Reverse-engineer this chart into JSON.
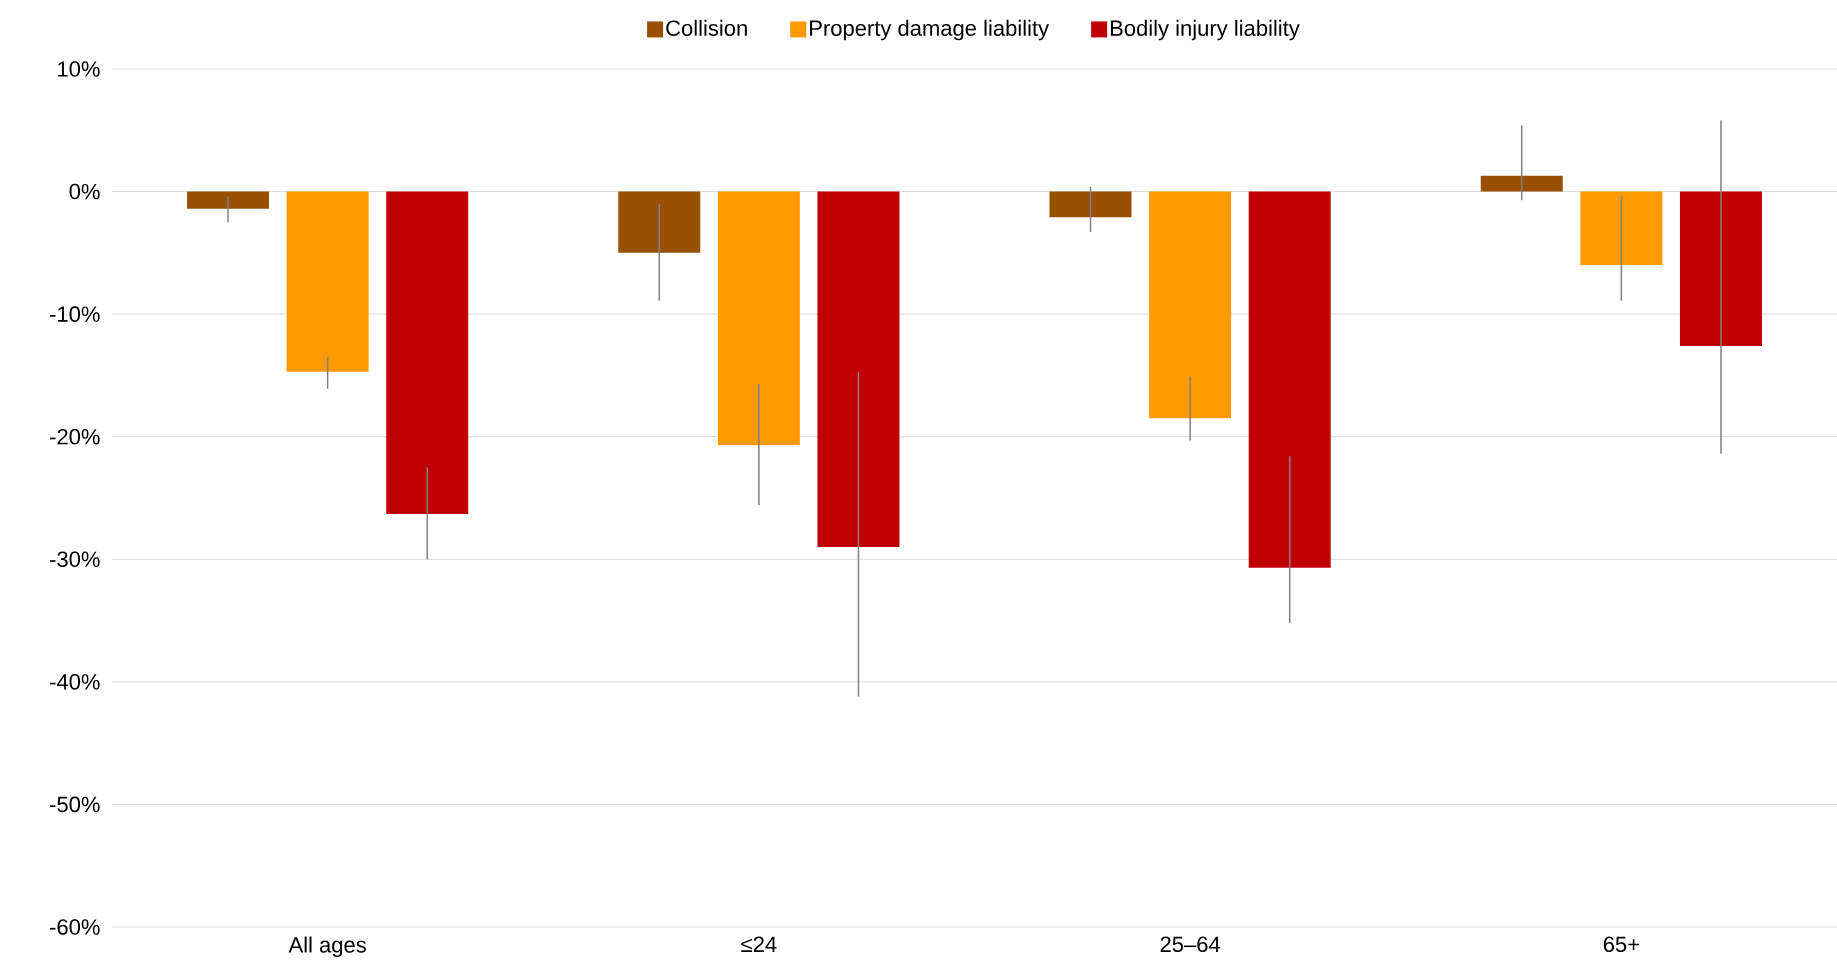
{
  "chart_data": {
    "type": "bar",
    "categories": [
      "All ages",
      "≤24",
      "25–64",
      "65+"
    ],
    "series": [
      {
        "name": "Collision",
        "color": "#984f00",
        "values": [
          -1.4,
          -5.0,
          -2.1,
          1.3
        ],
        "errors": [
          [
            -2.5,
            -0.4
          ],
          [
            -8.9,
            -1.0
          ],
          [
            -3.3,
            0.4
          ],
          [
            -0.7,
            5.4
          ]
        ]
      },
      {
        "name": "Property damage liability",
        "color": "#ff9900",
        "values": [
          -14.7,
          -20.7,
          -18.5,
          -6.0
        ],
        "errors": [
          [
            -16.1,
            -13.5
          ],
          [
            -25.6,
            -15.7
          ],
          [
            -20.3,
            -15.1
          ],
          [
            -8.9,
            -0.4
          ]
        ]
      },
      {
        "name": "Bodily injury liability",
        "color": "#c00000",
        "values": [
          -26.3,
          -29.0,
          -30.7,
          -12.6
        ],
        "errors": [
          [
            -30.0,
            -22.5
          ],
          [
            -41.2,
            -14.7
          ],
          [
            -35.2,
            -21.6
          ],
          [
            -21.4,
            5.8
          ]
        ]
      }
    ],
    "ylim": [
      -60,
      10
    ],
    "yticks": [
      {
        "value": 10,
        "label": "10%"
      },
      {
        "value": 0,
        "label": "0%"
      },
      {
        "value": -10,
        "label": "-10%"
      },
      {
        "value": -20,
        "label": "-20%"
      },
      {
        "value": -30,
        "label": "-30%"
      },
      {
        "value": -40,
        "label": "-40%"
      },
      {
        "value": -50,
        "label": "-50%"
      },
      {
        "value": -60,
        "label": "-60%"
      }
    ],
    "grid": "y",
    "legend": "top"
  }
}
